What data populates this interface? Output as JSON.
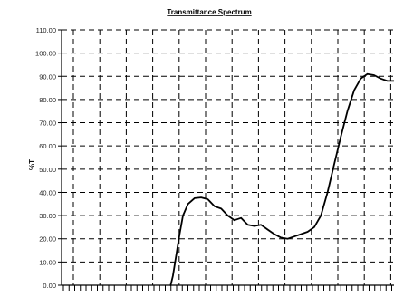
{
  "chart_data": {
    "type": "line",
    "title": "Transmittance Spectrum",
    "ylabel": "%T",
    "xlabel": "",
    "ylim": [
      0,
      110
    ],
    "yticks": [
      "0.00",
      "10.00",
      "20.00",
      "30.00",
      "40.00",
      "50.00",
      "60.00",
      "70.00",
      "80.00",
      "90.00",
      "100.00",
      "110.00"
    ],
    "grid": true,
    "x_relative_range": [
      0,
      1
    ],
    "series": [
      {
        "values_xy": [
          [
            0.328,
            0
          ],
          [
            0.335,
            4
          ],
          [
            0.345,
            13
          ],
          [
            0.355,
            22
          ],
          [
            0.365,
            30
          ],
          [
            0.38,
            35
          ],
          [
            0.4,
            37.5
          ],
          [
            0.42,
            37.8
          ],
          [
            0.44,
            37
          ],
          [
            0.46,
            34
          ],
          [
            0.48,
            33
          ],
          [
            0.5,
            30
          ],
          [
            0.52,
            28
          ],
          [
            0.54,
            29
          ],
          [
            0.56,
            26
          ],
          [
            0.58,
            25.5
          ],
          [
            0.6,
            26
          ],
          [
            0.62,
            24
          ],
          [
            0.64,
            22
          ],
          [
            0.66,
            20.5
          ],
          [
            0.68,
            20
          ],
          [
            0.7,
            21
          ],
          [
            0.72,
            22
          ],
          [
            0.74,
            23
          ],
          [
            0.76,
            25
          ],
          [
            0.78,
            30
          ],
          [
            0.8,
            40
          ],
          [
            0.82,
            52
          ],
          [
            0.84,
            64
          ],
          [
            0.86,
            75
          ],
          [
            0.88,
            84
          ],
          [
            0.9,
            89
          ],
          [
            0.92,
            91
          ],
          [
            0.94,
            90.5
          ],
          [
            0.96,
            89
          ],
          [
            0.98,
            88
          ],
          [
            1.0,
            88
          ]
        ]
      }
    ]
  }
}
